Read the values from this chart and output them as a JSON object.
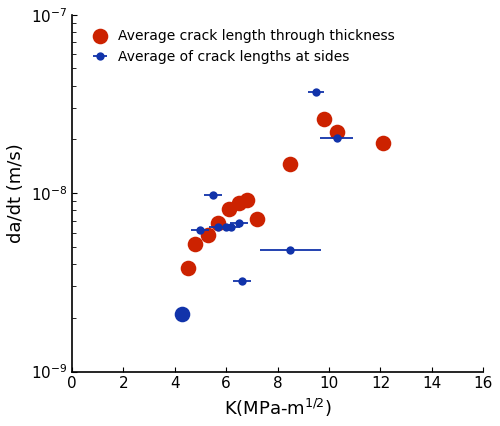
{
  "title": "",
  "xlabel": "K(MPa-m$^{1/2}$)",
  "ylabel": "da/dt (m/s)",
  "xlim": [
    0,
    16
  ],
  "ylim": [
    1e-09,
    1e-07
  ],
  "red_x": [
    4.5,
    4.8,
    5.3,
    5.7,
    6.1,
    6.5,
    6.8,
    7.2,
    8.5,
    9.8,
    10.3,
    12.1
  ],
  "red_y": [
    3.8e-09,
    5.2e-09,
    5.8e-09,
    6.8e-09,
    8.2e-09,
    8.8e-09,
    9.2e-09,
    7.2e-09,
    1.45e-08,
    2.6e-08,
    2.2e-08,
    1.9e-08
  ],
  "blue_x": [
    4.3,
    5.0,
    5.5,
    5.7,
    6.0,
    6.2,
    6.5,
    6.6,
    8.5,
    9.5,
    10.3
  ],
  "blue_y": [
    2.1e-09,
    6.2e-09,
    9.8e-09,
    6.5e-09,
    6.5e-09,
    6.5e-09,
    6.8e-09,
    3.2e-09,
    4.8e-09,
    3.7e-08,
    2.05e-08
  ],
  "blue_xerr": [
    0.0,
    0.35,
    0.35,
    0.35,
    0.35,
    0.35,
    0.35,
    0.35,
    1.2,
    0.3,
    0.65
  ],
  "red_color": "#cc2200",
  "blue_color": "#1133aa",
  "legend_red": "Average crack length through thickness",
  "legend_blue": "Average of crack lengths at sides",
  "marker_size": 6,
  "tick_fontsize": 11,
  "label_fontsize": 13,
  "legend_fontsize": 10
}
